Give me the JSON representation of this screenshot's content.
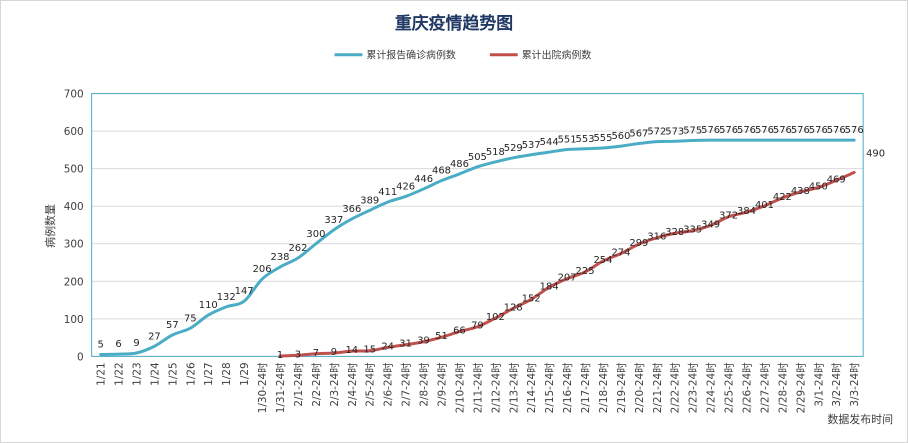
{
  "chart_data": {
    "type": "line",
    "title": "重庆疫情趋势图",
    "xlabel": "数据发布时间",
    "ylabel": "病例数量",
    "ylim": [
      0,
      700
    ],
    "yticks": [
      0,
      100,
      200,
      300,
      400,
      500,
      600,
      700
    ],
    "grid": true,
    "legend": "top-center",
    "categories": [
      "1/21",
      "1/22",
      "1/23",
      "1/24",
      "1/25",
      "1/26",
      "1/27",
      "1/28",
      "1/29",
      "1/30-24时",
      "1/31-24时",
      "2/1-24时",
      "2/2-24时",
      "2/3-24时",
      "2/4-24时",
      "2/5-24时",
      "2/6-24时",
      "2/7-24时",
      "2/8-24时",
      "2/9-24时",
      "2/10-24时",
      "2/11-24时",
      "2/12-24时",
      "2/13-24时",
      "2/14-24时",
      "2/15-24时",
      "2/16-24时",
      "2/17-24时",
      "2/18-24时",
      "2/19-24时",
      "2/20-24时",
      "2/21-24时",
      "2/22-24时",
      "2/23-24时",
      "2/24-24时",
      "2/25-24时",
      "2/26-24时",
      "2/27-24时",
      "2/28-24时",
      "2/29-24时",
      "3/1-24时",
      "3/2-24时",
      "3/3-24时"
    ],
    "series": [
      {
        "name": "累计报告确诊病例数",
        "color": "#4bacc6",
        "values": [
          5,
          6,
          9,
          27,
          57,
          75,
          110,
          132,
          147,
          206,
          238,
          262,
          300,
          337,
          366,
          389,
          411,
          426,
          446,
          468,
          486,
          505,
          518,
          529,
          537,
          544,
          551,
          553,
          555,
          560,
          567,
          572,
          573,
          575,
          576,
          576,
          576,
          576,
          576,
          576,
          576,
          576,
          576
        ]
      },
      {
        "name": "累计出院病例数",
        "color": "#c0504d",
        "values": [
          null,
          null,
          null,
          null,
          null,
          null,
          null,
          null,
          null,
          null,
          1,
          3,
          7,
          9,
          14,
          15,
          24,
          31,
          39,
          51,
          66,
          79,
          102,
          128,
          152,
          184,
          207,
          225,
          254,
          274,
          299,
          316,
          328,
          335,
          349,
          372,
          384,
          401,
          422,
          438,
          450,
          469,
          490
        ]
      }
    ]
  }
}
